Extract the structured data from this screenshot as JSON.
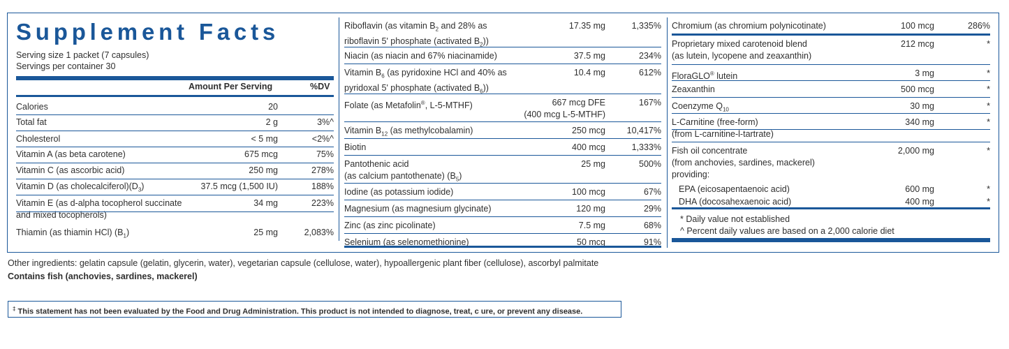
{
  "header": {
    "title": "Supplement Facts",
    "serving_size": "Serving size  1 packet (7 capsules)",
    "servings_per_container": "Servings per container  30",
    "amount_label": "Amount Per Serving",
    "dv_label": "%DV"
  },
  "col1": [
    {
      "name": "Calories",
      "amount": "20",
      "dv": ""
    },
    {
      "name": "Total fat",
      "amount": "2 g",
      "dv": "3%^"
    },
    {
      "name": "Cholesterol",
      "amount": "< 5 mg",
      "dv": "<2%^"
    },
    {
      "name": "Vitamin A (as beta carotene)",
      "amount": "675 mcg",
      "dv": "75%"
    },
    {
      "name": "Vitamin C (as ascorbic acid)",
      "amount": "250 mg",
      "dv": "278%"
    },
    {
      "name": "Vitamin D (as cholecalciferol)(D",
      "sub": "3",
      "name_after": ")",
      "amount": "37.5 mcg (1,500 IU)",
      "dv": "188%"
    },
    {
      "name": "Vitamin E (as d-alpha tocopherol succinate",
      "name2": "and mixed tocopherols)",
      "amount": "34 mg",
      "dv": "223%"
    },
    {
      "name": "Thiamin (as thiamin HCl) (B",
      "sub": "1",
      "name_after": ")",
      "amount": "25 mg",
      "dv": "2,083%"
    }
  ],
  "col2": [
    {
      "name": "Riboflavin (as vitamin B",
      "sub": "2",
      "name_after": " and 28% as",
      "name2": "riboflavin 5' phosphate (activated B",
      "sub2": "2",
      "name2_after": "))",
      "amount": "17.35 mg",
      "dv": "1,335%"
    },
    {
      "name": "Niacin (as niacin and 67% niacinamide)",
      "amount": "37.5 mg",
      "dv": "234%"
    },
    {
      "name": "Vitamin B",
      "sub": "6",
      "name_after": " (as pyridoxine HCl and 40% as",
      "name2": "pyridoxal 5' phosphate (activated B",
      "sub2": "6",
      "name2_after": "))",
      "amount": "10.4 mg",
      "dv": "612%"
    },
    {
      "name": "Folate (as Metafolin",
      "sup": "®",
      "name_after": ", L-5-MTHF)",
      "amount": "667 mcg DFE",
      "amount2": "(400 mcg L-5-MTHF)",
      "dv": "167%"
    },
    {
      "name": "Vitamin B",
      "sub": "12",
      "name_after": " (as methylcobalamin)",
      "amount": "250 mcg",
      "dv": "10,417%"
    },
    {
      "name": "Biotin",
      "amount": "400 mcg",
      "dv": "1,333%"
    },
    {
      "name": "Pantothenic acid",
      "name2": "(as calcium pantothenate) (B",
      "sub2": "5",
      "name2_after": ")",
      "amount": "25 mg",
      "dv": "500%"
    },
    {
      "name": "Iodine (as potassium iodide)",
      "amount": "100 mcg",
      "dv": "67%"
    },
    {
      "name": "Magnesium (as magnesium glycinate)",
      "amount": "120 mg",
      "dv": "29%"
    },
    {
      "name": "Zinc (as zinc picolinate)",
      "amount": "7.5 mg",
      "dv": "68%"
    },
    {
      "name": "Selenium (as selenomethionine)",
      "amount": "50 mcg",
      "dv": "91%"
    }
  ],
  "col3": [
    {
      "name": "Chromium (as chromium polynicotinate)",
      "amount": "100 mcg",
      "dv": "286%"
    },
    {
      "name": "Proprietary mixed carotenoid blend",
      "name2": "(as lutein, lycopene and zeaxanthin)",
      "amount": "212 mcg",
      "dv": "*"
    },
    {
      "name": "FloraGLO",
      "sup": "®",
      "name_after": " lutein",
      "amount": "3 mg",
      "dv": "*"
    },
    {
      "name": "Zeaxanthin",
      "amount": "500 mcg",
      "dv": "*"
    },
    {
      "name": "Coenzyme Q",
      "sub": "10",
      "name_after": "",
      "amount": "30 mg",
      "dv": "*"
    },
    {
      "name": "L-Carnitine (free-form)",
      "name2": "(from L-carnitine-l-tartrate)",
      "amount": "340 mg",
      "dv": "*"
    },
    {
      "name": "Fish oil concentrate",
      "name2": " (from anchovies, sardines, mackerel)",
      "name3": " providing:",
      "amount": "2,000 mg",
      "dv": "*"
    },
    {
      "name": "EPA (eicosapentaenoic acid)",
      "amount": "600 mg",
      "dv": "*"
    },
    {
      "name": "DHA (docosahexaenoic acid)",
      "amount": "400 mg",
      "dv": "*"
    }
  ],
  "notes": [
    "* Daily value not established",
    "^ Percent daily values are based on a 2,000 calorie diet"
  ],
  "other_ingredients": "Other ingredients: gelatin capsule (gelatin, glycerin, water), vegetarian capsule (cellulose, water), hypoallergenic plant fiber (cellulose), ascorbyl palmitate",
  "contains": "Contains fish (anchovies, sardines, mackerel)",
  "disclaimer_mark": "‡",
  "disclaimer": "This statement has not been evaluated by the Food and Drug Administration. This product is not intended to diagnose, treat, c ure, or prevent any disease.",
  "brand_color": "#1a5799"
}
